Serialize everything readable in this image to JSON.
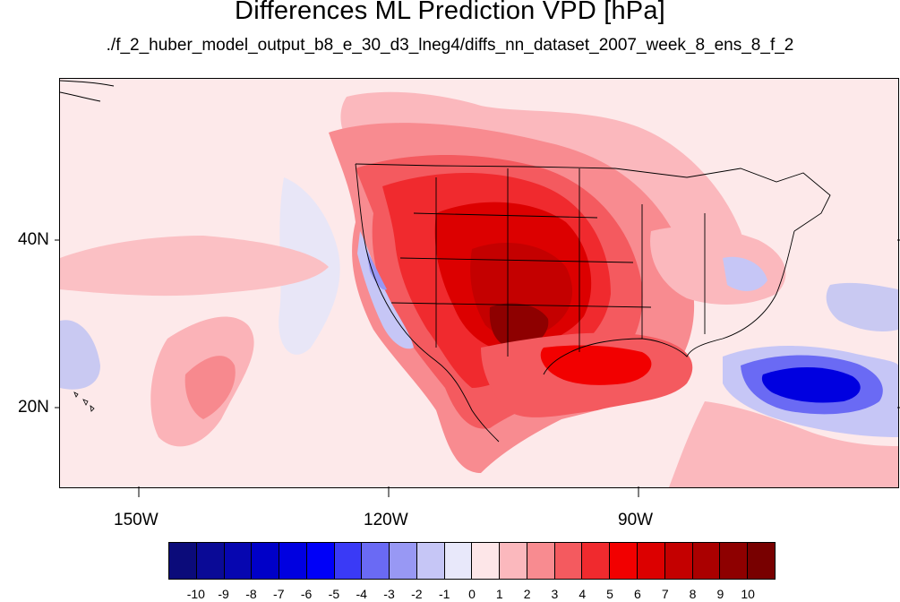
{
  "title": "Differences ML Prediction VPD [hPa]",
  "subtitle": "./f_2_huber_model_output_b8_e_30_d3_lneg4/diffs_nn_dataset_2007_week_8_ens_8_f_2",
  "lon_labels": [
    "150W",
    "120W",
    "90W"
  ],
  "lat_labels": [
    "40N",
    "20N"
  ],
  "colorbar": {
    "labels": [
      "-10",
      "-9",
      "-8",
      "-7",
      "-6",
      "-5",
      "-4",
      "-3",
      "-2",
      "-1",
      "0",
      "1",
      "2",
      "3",
      "4",
      "5",
      "6",
      "7",
      "8",
      "9",
      "10"
    ],
    "colors": [
      "#0b0b7a",
      "#0a0a96",
      "#0606b0",
      "#0000c8",
      "#0000e0",
      "#0000f8",
      "#3a3af6",
      "#6a6af4",
      "#9898f4",
      "#c6c6f6",
      "#e8e8fa",
      "#fde6e8",
      "#fbb8bd",
      "#f88b90",
      "#f45a5f",
      "#f02a2e",
      "#f20000",
      "#dc0000",
      "#c40000",
      "#aa0000",
      "#8e0000",
      "#780000"
    ]
  }
}
